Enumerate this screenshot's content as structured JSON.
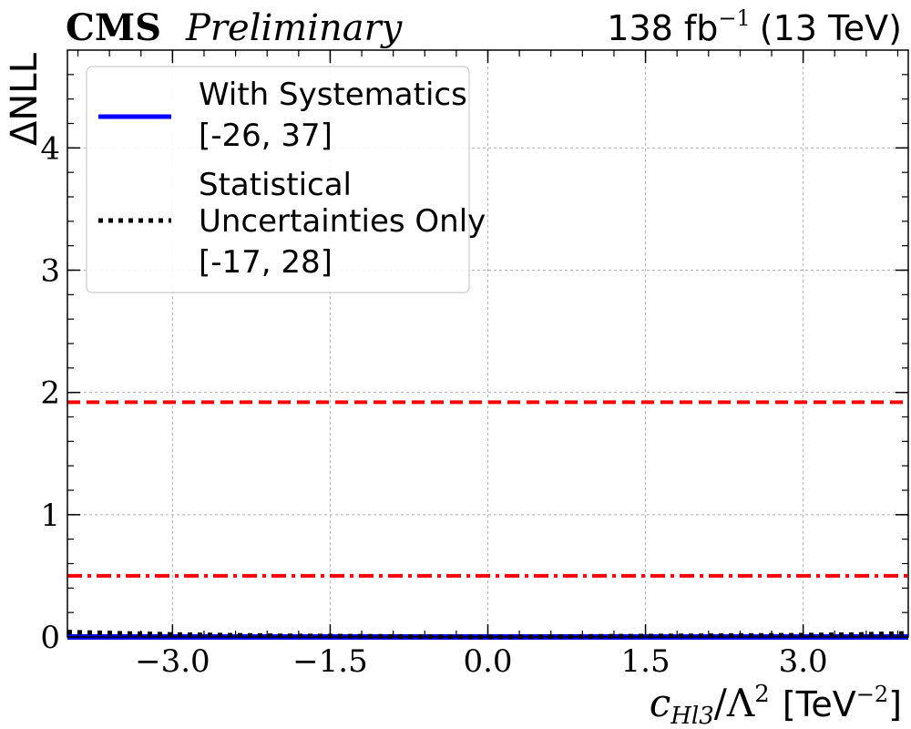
{
  "chart_data": {
    "type": "line",
    "experiment": "CMS",
    "status": "Preliminary",
    "lumi_text": "138 fb",
    "lumi_exponent": "−1",
    "energy_text": "(13 TeV)",
    "xlabel_main": "c",
    "xlabel_sub": "Hl3",
    "xlabel_denom": "/Λ",
    "xlabel_denom_exp": "2",
    "xlabel_unit": "[TeV",
    "xlabel_unit_exp": "−2",
    "xlabel_unit_close": "]",
    "ylabel": "ΔNLL",
    "xlim": [
      -4.0,
      4.0
    ],
    "ylim": [
      0,
      4.8
    ],
    "xticks": [
      -3.0,
      -1.5,
      0.0,
      1.5,
      3.0
    ],
    "xtick_labels": [
      "−3.0",
      "−1.5",
      "0.0",
      "1.5",
      "3.0"
    ],
    "yticks": [
      0,
      1,
      2,
      3,
      4
    ],
    "ytick_labels": [
      "0",
      "1",
      "2",
      "3",
      "4"
    ],
    "grid": true,
    "legend_position": "top-left",
    "series": [
      {
        "name": "With Systematics",
        "interval": "[-26, 37]",
        "style": "solid",
        "color": "#0000ff",
        "x": [
          -4.0,
          -3.0,
          -2.0,
          -1.0,
          0.0,
          1.0,
          2.0,
          3.0,
          4.0
        ],
        "y": [
          0,
          0,
          0,
          0,
          0,
          0,
          0,
          0,
          0
        ]
      },
      {
        "name_lines": [
          "Statistical",
          "Uncertainties Only"
        ],
        "interval": "[-17, 28]",
        "style": "dotted",
        "color": "#000000",
        "x": [
          -4.0,
          -3.5,
          -3.0,
          -2.0,
          -1.0,
          0.0,
          1.0,
          2.0,
          3.0,
          3.5,
          4.0
        ],
        "y": [
          0.04,
          0.03,
          0.02,
          0.01,
          0.005,
          0.0,
          0.005,
          0.01,
          0.015,
          0.02,
          0.03
        ]
      }
    ],
    "reference_lines": [
      {
        "y": 1.92,
        "style": "dashed",
        "color": "#ff0000"
      },
      {
        "y": 0.5,
        "style": "dashdot",
        "color": "#ff0000"
      }
    ]
  }
}
